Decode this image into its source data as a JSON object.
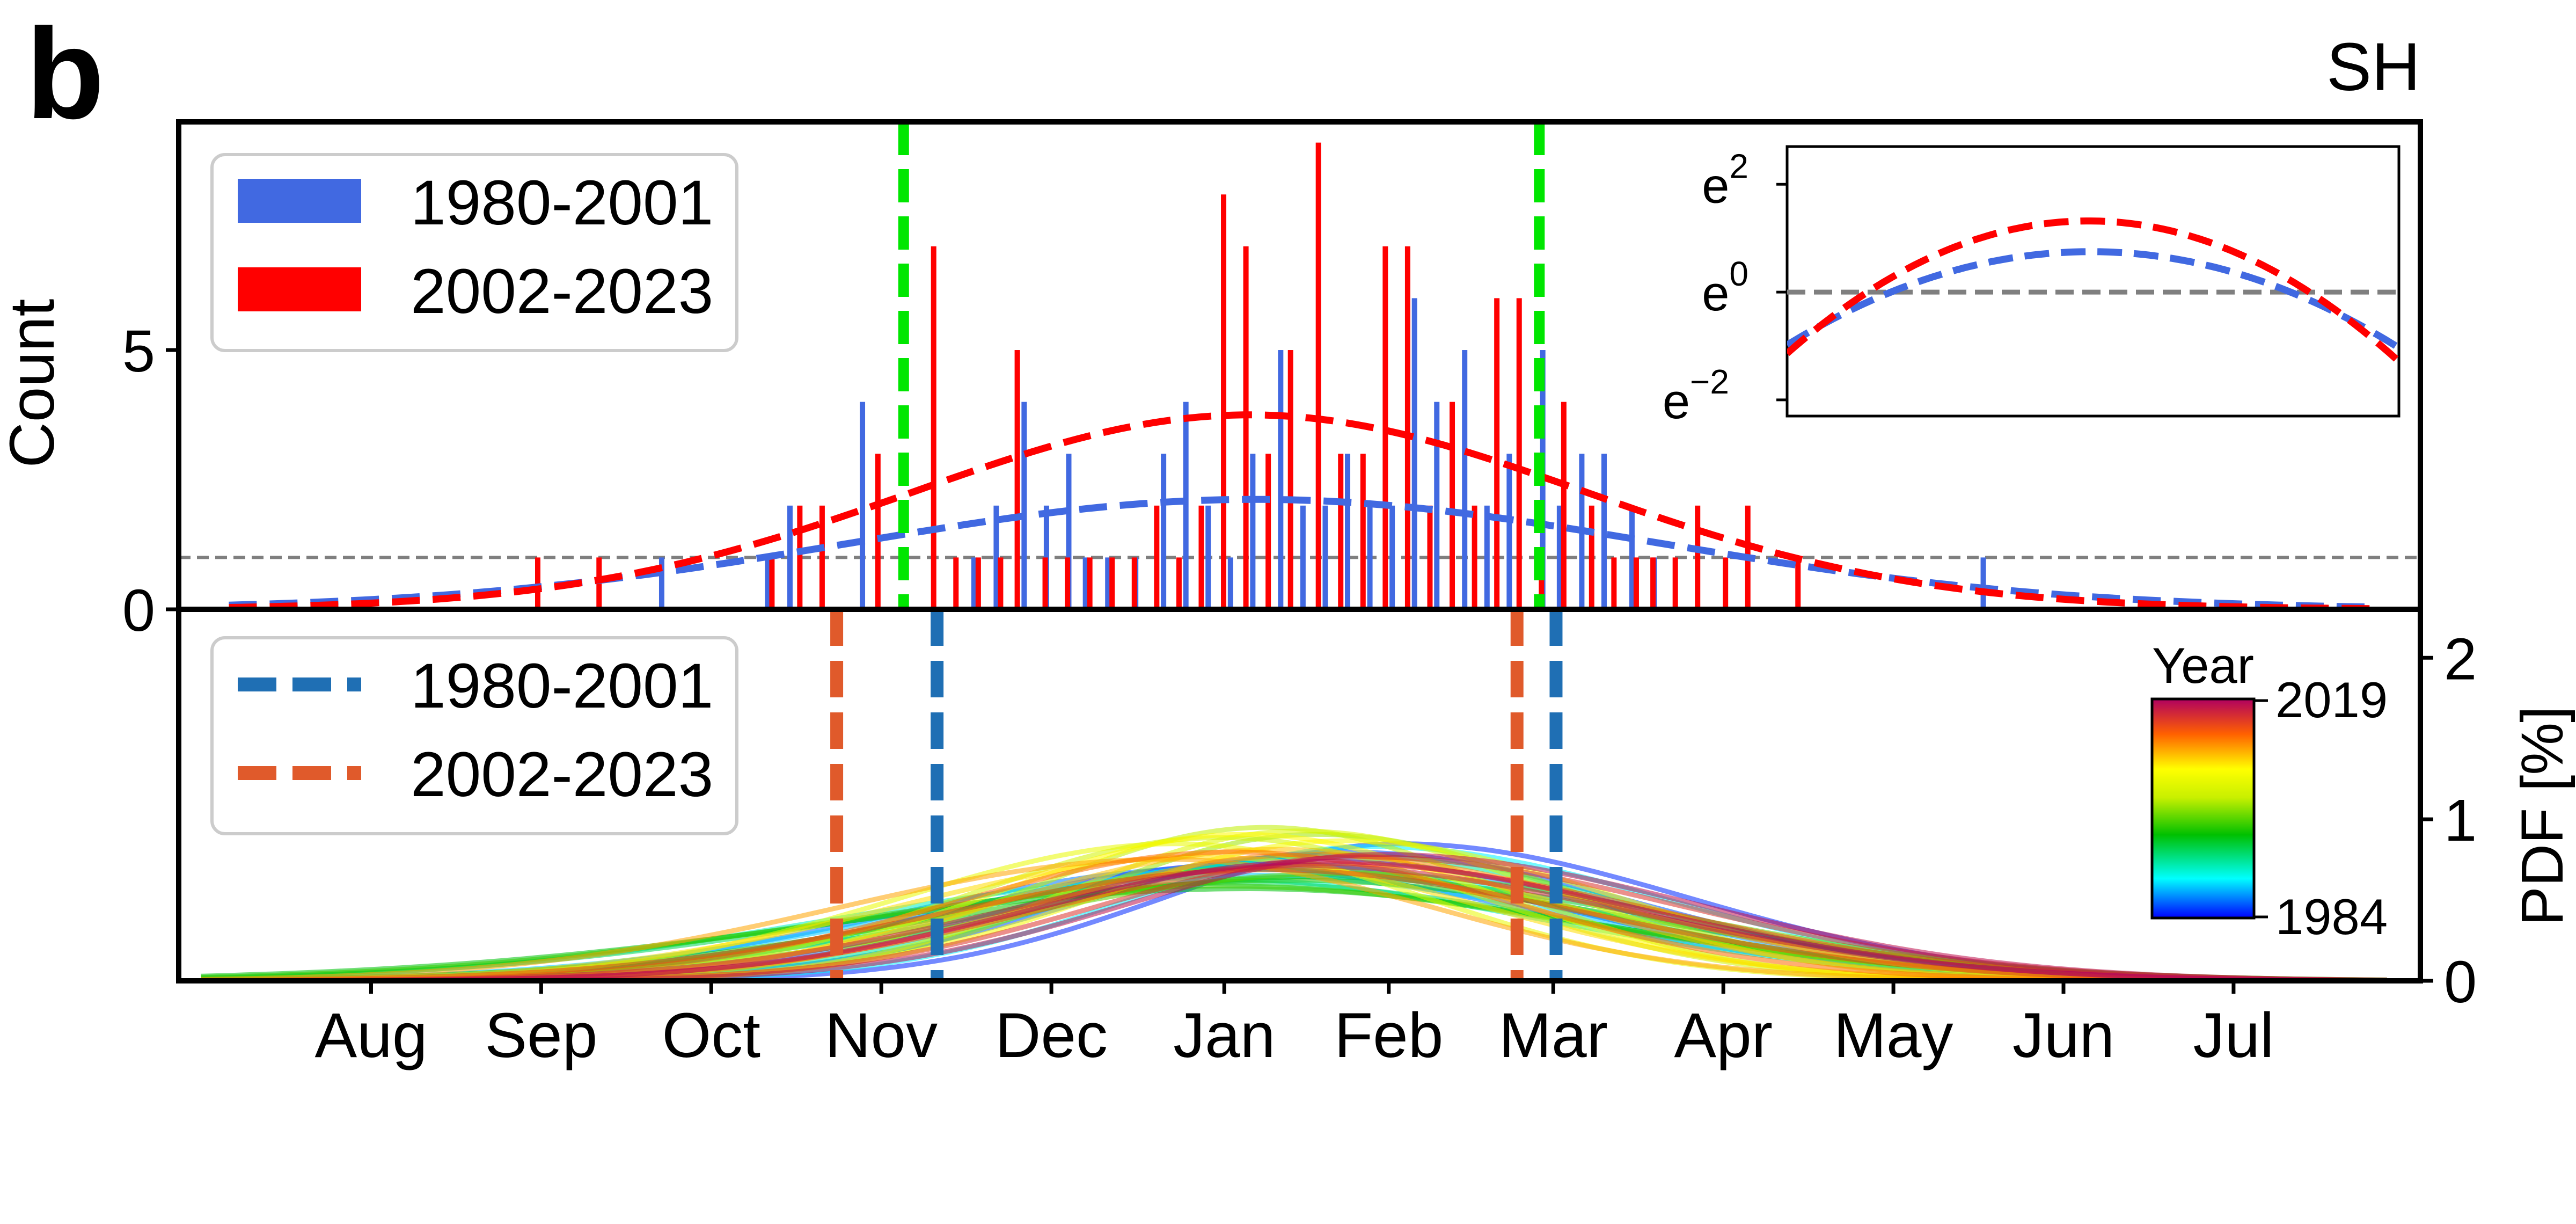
{
  "panel_letter": "b",
  "region_label": "SH",
  "colors": {
    "blue": "#4169e1",
    "red": "#ff0000",
    "green_line": "#00e600",
    "dark_blue": "#1f6fb4",
    "dark_orange": "#e05a2b",
    "gray": "#7f7f7f"
  },
  "months": [
    "Aug",
    "Sep",
    "Oct",
    "Nov",
    "Dec",
    "Jan",
    "Feb",
    "Mar",
    "Apr",
    "May",
    "Jun",
    "Jul"
  ],
  "chart_data": [
    {
      "id": "top",
      "type": "bar",
      "ylabel": "Count",
      "yticks": [
        0,
        5
      ],
      "ylim": [
        0,
        9.4
      ],
      "x_unit": "day of season (0 = 1 Aug)",
      "xlim": [
        -19,
        383
      ],
      "legend": {
        "placement": "top-left",
        "entries": [
          {
            "label": "1980-2001",
            "color": "#4169e1"
          },
          {
            "label": "2002-2023",
            "color": "#ff0000"
          }
        ]
      },
      "threshold": {
        "value": 1,
        "style": "dashed",
        "color": "#7f7f7f"
      },
      "vlines": {
        "color": "#00e600",
        "days": [
          111,
          225
        ]
      },
      "series": [
        {
          "name": "1980-2001",
          "color": "#4169e1",
          "bars": [
            {
              "day": 68,
              "value": 1
            },
            {
              "day": 87,
              "value": 1
            },
            {
              "day": 91,
              "value": 2
            },
            {
              "day": 104,
              "value": 4
            },
            {
              "day": 124,
              "value": 1
            },
            {
              "day": 128,
              "value": 2
            },
            {
              "day": 133,
              "value": 4
            },
            {
              "day": 137,
              "value": 2
            },
            {
              "day": 141,
              "value": 3
            },
            {
              "day": 144,
              "value": 1
            },
            {
              "day": 148,
              "value": 1
            },
            {
              "day": 153,
              "value": 1
            },
            {
              "day": 158,
              "value": 3
            },
            {
              "day": 162,
              "value": 4
            },
            {
              "day": 166,
              "value": 2
            },
            {
              "day": 170,
              "value": 1
            },
            {
              "day": 174,
              "value": 3
            },
            {
              "day": 179,
              "value": 5
            },
            {
              "day": 183,
              "value": 2
            },
            {
              "day": 187,
              "value": 2
            },
            {
              "day": 191,
              "value": 3
            },
            {
              "day": 195,
              "value": 2
            },
            {
              "day": 199,
              "value": 2
            },
            {
              "day": 203,
              "value": 6
            },
            {
              "day": 207,
              "value": 4
            },
            {
              "day": 212,
              "value": 5
            },
            {
              "day": 216,
              "value": 2
            },
            {
              "day": 220,
              "value": 3
            },
            {
              "day": 226,
              "value": 5
            },
            {
              "day": 229,
              "value": 2
            },
            {
              "day": 233,
              "value": 3
            },
            {
              "day": 237,
              "value": 3
            },
            {
              "day": 242,
              "value": 2
            },
            {
              "day": 246,
              "value": 1
            },
            {
              "day": 305,
              "value": 1
            }
          ],
          "fit": {
            "peak": 2.12,
            "mode_day": 174,
            "sigma": 72
          }
        },
        {
          "name": "2002-2023",
          "color": "#ff0000",
          "bars": [
            {
              "day": 45,
              "value": 1
            },
            {
              "day": 56,
              "value": 1
            },
            {
              "day": 87,
              "value": 1
            },
            {
              "day": 92,
              "value": 2
            },
            {
              "day": 96,
              "value": 2
            },
            {
              "day": 106,
              "value": 3
            },
            {
              "day": 116,
              "value": 7
            },
            {
              "day": 120,
              "value": 1
            },
            {
              "day": 124,
              "value": 1
            },
            {
              "day": 128,
              "value": 1
            },
            {
              "day": 131,
              "value": 5
            },
            {
              "day": 136,
              "value": 1
            },
            {
              "day": 140,
              "value": 1
            },
            {
              "day": 144,
              "value": 1
            },
            {
              "day": 148,
              "value": 1
            },
            {
              "day": 152,
              "value": 1
            },
            {
              "day": 156,
              "value": 2
            },
            {
              "day": 160,
              "value": 1
            },
            {
              "day": 164,
              "value": 2
            },
            {
              "day": 168,
              "value": 8
            },
            {
              "day": 172,
              "value": 7
            },
            {
              "day": 176,
              "value": 3
            },
            {
              "day": 180,
              "value": 5
            },
            {
              "day": 185,
              "value": 9
            },
            {
              "day": 189,
              "value": 3
            },
            {
              "day": 193,
              "value": 3
            },
            {
              "day": 197,
              "value": 7
            },
            {
              "day": 201,
              "value": 7
            },
            {
              "day": 205,
              "value": 2
            },
            {
              "day": 209,
              "value": 4
            },
            {
              "day": 213,
              "value": 2
            },
            {
              "day": 217,
              "value": 6
            },
            {
              "day": 221,
              "value": 6
            },
            {
              "day": 225,
              "value": 1
            },
            {
              "day": 229,
              "value": 4
            },
            {
              "day": 234,
              "value": 2
            },
            {
              "day": 238,
              "value": 1
            },
            {
              "day": 242,
              "value": 1
            },
            {
              "day": 245,
              "value": 1
            },
            {
              "day": 249,
              "value": 1
            },
            {
              "day": 253,
              "value": 2
            },
            {
              "day": 258,
              "value": 1
            },
            {
              "day": 262,
              "value": 2
            },
            {
              "day": 271,
              "value": 1
            }
          ],
          "fit": {
            "peak": 3.75,
            "mode_day": 173,
            "sigma": 60
          }
        }
      ]
    },
    {
      "id": "inset",
      "type": "line",
      "yscale": "log (base e)",
      "yticks": [
        {
          "base": "e",
          "exp": "2",
          "value": 2
        },
        {
          "base": "e",
          "exp": "0",
          "value": 0
        },
        {
          "base": "e",
          "exp": "−2",
          "value": -2
        }
      ],
      "ylim": [
        -2.3,
        2.7
      ],
      "reference": {
        "value": 0,
        "style": "dashed",
        "color": "#7f7f7f"
      },
      "series": [
        {
          "name": "1980-2001",
          "color": "#4169e1",
          "curve": {
            "peak": 0.75,
            "mode_day": 174,
            "sigma": 72
          }
        },
        {
          "name": "2002-2023",
          "color": "#ff0000",
          "curve": {
            "peak": 1.32,
            "mode_day": 173,
            "sigma": 60
          }
        }
      ]
    },
    {
      "id": "bottom",
      "type": "line",
      "ylabel": "PDF [%]",
      "yticks": [
        0,
        1,
        2
      ],
      "ylim": [
        0,
        2.3
      ],
      "legend": {
        "placement": "top-left",
        "entries": [
          {
            "label": "1980-2001",
            "color": "#1f6fb4",
            "style": "dashed"
          },
          {
            "label": "2002-2023",
            "color": "#e05a2b",
            "style": "dashed"
          }
        ]
      },
      "vlines": [
        {
          "name": "1980-2001",
          "color": "#1f6fb4",
          "days": [
            117,
            228
          ]
        },
        {
          "name": "2002-2023",
          "color": "#e05a2b",
          "days": [
            99,
            221
          ]
        }
      ],
      "colorbar": {
        "title": "Year",
        "max_label": "2019",
        "min_label": "1984",
        "placement": "right"
      },
      "series": [
        {
          "year": 1984,
          "mode_day": 175,
          "sigma": 55,
          "skew": 0.0
        },
        {
          "year": 1985,
          "mode_day": 200,
          "sigma": 47,
          "skew": 0.2
        },
        {
          "year": 1986,
          "mode_day": 190,
          "sigma": 50,
          "skew": 0.1
        },
        {
          "year": 1987,
          "mode_day": 168,
          "sigma": 57,
          "skew": 0.0
        },
        {
          "year": 1988,
          "mode_day": 182,
          "sigma": 52,
          "skew": 0.1
        },
        {
          "year": 1989,
          "mode_day": 172,
          "sigma": 61,
          "skew": 0.0
        },
        {
          "year": 1990,
          "mode_day": 195,
          "sigma": 48,
          "skew": 0.2
        },
        {
          "year": 1991,
          "mode_day": 178,
          "sigma": 55,
          "skew": 0.0
        },
        {
          "year": 1992,
          "mode_day": 165,
          "sigma": 63,
          "skew": -0.1
        },
        {
          "year": 1993,
          "mode_day": 188,
          "sigma": 51,
          "skew": 0.1
        },
        {
          "year": 1994,
          "mode_day": 176,
          "sigma": 58,
          "skew": 0.0
        },
        {
          "year": 1995,
          "mode_day": 170,
          "sigma": 66,
          "skew": -0.1
        },
        {
          "year": 1996,
          "mode_day": 185,
          "sigma": 62,
          "skew": 0.0
        },
        {
          "year": 1997,
          "mode_day": 173,
          "sigma": 70,
          "skew": -0.2
        },
        {
          "year": 1998,
          "mode_day": 180,
          "sigma": 64,
          "skew": 0.0
        },
        {
          "year": 1999,
          "mode_day": 168,
          "sigma": 68,
          "skew": -0.1
        },
        {
          "year": 2000,
          "mode_day": 190,
          "sigma": 60,
          "skew": 0.0
        },
        {
          "year": 2001,
          "mode_day": 177,
          "sigma": 57,
          "skew": 0.0
        },
        {
          "year": 2002,
          "mode_day": 185,
          "sigma": 44,
          "skew": 0.1
        },
        {
          "year": 2003,
          "mode_day": 176,
          "sigma": 42,
          "skew": 0.0
        },
        {
          "year": 2004,
          "mode_day": 168,
          "sigma": 45,
          "skew": 0.0
        },
        {
          "year": 2005,
          "mode_day": 182,
          "sigma": 43,
          "skew": 0.1
        },
        {
          "year": 2006,
          "mode_day": 160,
          "sigma": 47,
          "skew": -0.1
        },
        {
          "year": 2007,
          "mode_day": 190,
          "sigma": 46,
          "skew": 0.1
        },
        {
          "year": 2008,
          "mode_day": 172,
          "sigma": 44,
          "skew": 0.0
        },
        {
          "year": 2009,
          "mode_day": 165,
          "sigma": 52,
          "skew": -0.1
        },
        {
          "year": 2010,
          "mode_day": 178,
          "sigma": 49,
          "skew": 0.0
        },
        {
          "year": 2011,
          "mode_day": 158,
          "sigma": 53,
          "skew": -0.2
        },
        {
          "year": 2012,
          "mode_day": 184,
          "sigma": 51,
          "skew": 0.1
        },
        {
          "year": 2013,
          "mode_day": 170,
          "sigma": 50,
          "skew": 0.0
        },
        {
          "year": 2014,
          "mode_day": 188,
          "sigma": 55,
          "skew": 0.1
        },
        {
          "year": 2015,
          "mode_day": 176,
          "sigma": 58,
          "skew": 0.0
        },
        {
          "year": 2016,
          "mode_day": 193,
          "sigma": 52,
          "skew": 0.2
        },
        {
          "year": 2017,
          "mode_day": 182,
          "sigma": 56,
          "skew": 0.1
        },
        {
          "year": 2018,
          "mode_day": 197,
          "sigma": 51,
          "skew": 0.2
        },
        {
          "year": 2019,
          "mode_day": 186,
          "sigma": 54,
          "skew": 0.1
        }
      ]
    }
  ]
}
